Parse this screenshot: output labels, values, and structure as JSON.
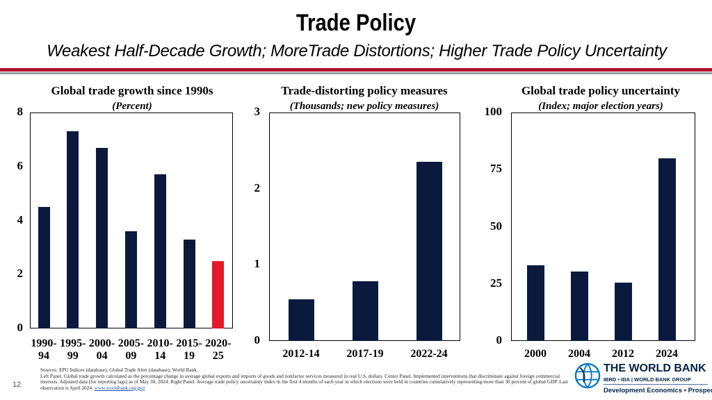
{
  "slide": {
    "title": "Trade Policy",
    "subtitle": "Weakest Half-Decade Growth; MoreTrade Distortions; Higher Trade Policy Uncertainty",
    "page_number": "12"
  },
  "colors": {
    "bar": "#0b1a3c",
    "highlight": "#e5192c",
    "rule_red": "#b3122d"
  },
  "chart_data": [
    {
      "type": "bar",
      "title": "Global trade growth since 1990s",
      "subtitle": "(Percent)",
      "categories": [
        "1990-94",
        "1995-99",
        "2000-04",
        "2005-09",
        "2010-14",
        "2015-19",
        "2020-25"
      ],
      "category_labels": [
        {
          "top": "1990-",
          "bottom": "94"
        },
        {
          "top": "1995-",
          "bottom": "99"
        },
        {
          "top": "2000-",
          "bottom": "04"
        },
        {
          "top": "2005-",
          "bottom": "09"
        },
        {
          "top": "2010-",
          "bottom": "14"
        },
        {
          "top": "2015-",
          "bottom": "19"
        },
        {
          "top": "2020-",
          "bottom": "25"
        }
      ],
      "values": [
        4.5,
        7.3,
        6.7,
        3.6,
        5.7,
        3.3,
        2.5
      ],
      "highlight_index": 6,
      "ylim": [
        0,
        8
      ],
      "yticks": [
        "0",
        "2",
        "4",
        "6",
        "8"
      ]
    },
    {
      "type": "bar",
      "title": "Trade-distorting policy measures",
      "subtitle": "(Thousands; new policy measures)",
      "categories": [
        "2012-14",
        "2017-19",
        "2022-24"
      ],
      "values": [
        0.55,
        0.78,
        2.35
      ],
      "ylim": [
        0,
        3
      ],
      "yticks": [
        "0",
        "1",
        "2",
        "3"
      ]
    },
    {
      "type": "bar",
      "title": "Global trade policy uncertainty",
      "subtitle": "(Index; major election years)",
      "categories": [
        "2000",
        "2004",
        "2012",
        "2024"
      ],
      "values": [
        33,
        30.5,
        25.5,
        80
      ],
      "ylim": [
        0,
        100
      ],
      "yticks": [
        "0",
        "25",
        "50",
        "75",
        "100"
      ]
    }
  ],
  "footnote": {
    "lines": [
      "Sources: EPU Indices (database); Global Trade Alert (database); World Bank.",
      "Left Panel. Global trade growth calculated as the percentage change in average global exports and imports of goods and nonfactor services measured in real U.S. dollars. Center Panel. Implemented interventions that discriminate against foreign commercial interests. Adjusted data (for reporting lags) as of May 30, 2024. Right Panel. Average trade policy uncertainty index in the first 4 months of each year in which elections were held in countries cumulatively representing more than 30 percent of global GDP. Last observation is April 2024."
    ],
    "link": "www.worldbank.org/gep"
  },
  "logo": {
    "name": "THE WORLD BANK",
    "line2": "IBRD • IDA | WORLD BANK GROUP",
    "department": "Development Economics • Prospects"
  }
}
